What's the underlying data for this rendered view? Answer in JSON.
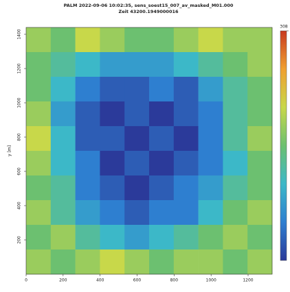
{
  "chart_data": {
    "type": "heatmap",
    "title": "PALM 2022-09-06 10:02:35, sens_soest15_007_av_masked_M01.000",
    "subtitle": "Zeit 43200.1949000016",
    "y_label": "y [m]",
    "xlim": [
      0,
      1330
    ],
    "ylim": [
      0,
      1440
    ],
    "xticks": [
      0,
      200,
      400,
      600,
      800,
      1000,
      1200
    ],
    "yticks": [
      200,
      400,
      600,
      800,
      1000,
      1200,
      1400
    ],
    "clim": [
      296,
      308
    ],
    "cticks": [
      308
    ],
    "colormap": [
      "#2b3a9a",
      "#2e7fd0",
      "#3cb8c8",
      "#6cc070",
      "#c8d84a",
      "#f0a030",
      "#c83a20"
    ],
    "z": [
      [
        303,
        302,
        304,
        303,
        302,
        302,
        303,
        304,
        303,
        303
      ],
      [
        302,
        301,
        300,
        299,
        299,
        299,
        300,
        301,
        302,
        303
      ],
      [
        302,
        300,
        298,
        297,
        297,
        298,
        297,
        299,
        301,
        302
      ],
      [
        303,
        299,
        297,
        296,
        297,
        296,
        297,
        298,
        301,
        302
      ],
      [
        304,
        300,
        297,
        297,
        296,
        297,
        296,
        298,
        301,
        303
      ],
      [
        303,
        300,
        298,
        296,
        297,
        296,
        297,
        298,
        300,
        302
      ],
      [
        302,
        301,
        298,
        297,
        296,
        297,
        298,
        299,
        301,
        302
      ],
      [
        303,
        301,
        299,
        298,
        297,
        298,
        298,
        300,
        302,
        303
      ],
      [
        302,
        303,
        301,
        300,
        299,
        300,
        301,
        302,
        303,
        302
      ],
      [
        303,
        302,
        303,
        304,
        303,
        302,
        303,
        303,
        302,
        303
      ]
    ]
  }
}
